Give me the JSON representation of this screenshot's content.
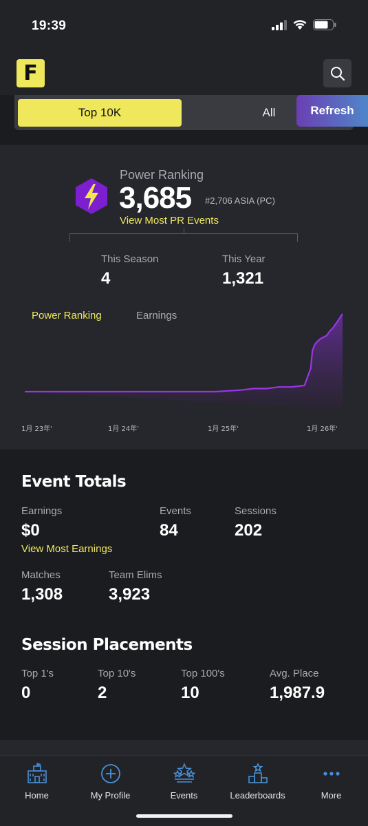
{
  "status_bar": {
    "time": "19:39"
  },
  "header": {
    "logo_letter": "F"
  },
  "segment": {
    "top10k_label": "Top 10K",
    "all_label": "All",
    "refresh_label": "Refresh"
  },
  "power_ranking": {
    "label": "Power Ranking",
    "value": "3,685",
    "rank": "#2,706 ASIA (PC)",
    "link": "View Most PR Events",
    "this_season_label": "This Season",
    "this_season_value": "4",
    "this_year_label": "This Year",
    "this_year_value": "1,321"
  },
  "chart_tabs": {
    "power_ranking": "Power Ranking",
    "earnings": "Earnings"
  },
  "chart_data": {
    "type": "area",
    "x_tick_labels": [
      "1月 23年'",
      "1月 24年'",
      "1月 25年'",
      "1月 26年'"
    ],
    "series": [
      {
        "x": [
          0,
          0.2,
          0.4,
          0.6,
          0.68,
          0.72,
          0.76,
          0.8,
          0.84,
          0.88,
          0.9,
          0.905,
          0.91,
          0.915,
          0.92,
          0.93,
          0.95,
          0.96,
          0.97,
          0.98,
          0.99,
          1.0
        ],
        "values": [
          0,
          0,
          0,
          0,
          2,
          4,
          4,
          6,
          6,
          8,
          30,
          52,
          58,
          62,
          64,
          68,
          72,
          78,
          82,
          88,
          94,
          100
        ]
      }
    ],
    "color": "#9b35e8"
  },
  "event_totals": {
    "title": "Event Totals",
    "earnings_label": "Earnings",
    "earnings_value": "$0",
    "earnings_link": "View Most Earnings",
    "events_label": "Events",
    "events_value": "84",
    "sessions_label": "Sessions",
    "sessions_value": "202",
    "matches_label": "Matches",
    "matches_value": "1,308",
    "team_elims_label": "Team Elims",
    "team_elims_value": "3,923"
  },
  "session_placements": {
    "title": "Session Placements",
    "top1_label": "Top 1's",
    "top1_value": "0",
    "top10_label": "Top 10's",
    "top10_value": "2",
    "top100_label": "Top 100's",
    "top100_value": "10",
    "avg_label": "Avg. Place",
    "avg_value": "1,987.9"
  },
  "tabbar": {
    "items": [
      {
        "label": "Home",
        "icon": "castle-icon"
      },
      {
        "label": "My Profile",
        "icon": "plus-circle-icon"
      },
      {
        "label": "Events",
        "icon": "stars-icon"
      },
      {
        "label": "Leaderboards",
        "icon": "podium-icon"
      },
      {
        "label": "More",
        "icon": "ellipsis-icon"
      }
    ]
  },
  "colors": {
    "accent_yellow": "#efe85d",
    "chart_purple": "#9b35e8",
    "tab_blue": "#4a8fd6"
  }
}
